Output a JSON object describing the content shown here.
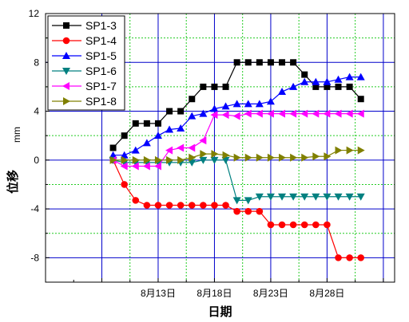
{
  "chart_data": {
    "type": "line",
    "xlabel": "日期",
    "ylabel": "位移",
    "yunit": "mm",
    "xlim": [
      3,
      34
    ],
    "ylim": [
      -10,
      12
    ],
    "ytick_values": [
      -8,
      -4,
      0,
      4,
      8,
      12
    ],
    "ytick_labels": [
      "-8",
      "-4",
      "0",
      "4",
      "8",
      "12"
    ],
    "xtick_values": [
      13,
      18,
      23,
      28
    ],
    "xtick_labels": [
      "8月13日",
      "8月18日",
      "8月23日",
      "8月28日"
    ],
    "x_major_grid": [
      3,
      8,
      13,
      18,
      23,
      28,
      33
    ],
    "x_minor_grid": [
      10.5,
      15.5,
      20.5,
      25.5,
      30.5
    ],
    "y_major_grid": [
      -8,
      -4,
      0,
      4,
      8
    ],
    "y_minor_grid": [
      -10,
      -6,
      -2,
      2,
      6,
      10
    ],
    "grid": true,
    "legend_position": "top-left",
    "x": [
      9,
      10,
      11,
      12,
      13,
      14,
      15,
      16,
      17,
      18,
      19,
      20,
      21,
      22,
      23,
      24,
      25,
      26,
      27,
      28,
      29,
      30,
      31
    ],
    "series": [
      {
        "name": "SP1-3",
        "color": "#000000",
        "marker": "square",
        "values": [
          1,
          2,
          3,
          3,
          3,
          4,
          4,
          5,
          6,
          6,
          6,
          8,
          8,
          8,
          8,
          8,
          8,
          7,
          6,
          6,
          6,
          6,
          5
        ]
      },
      {
        "name": "SP1-4",
        "color": "#ff0000",
        "marker": "circle",
        "values": [
          0,
          -2,
          -3.3,
          -3.7,
          -3.7,
          -3.7,
          -3.7,
          -3.7,
          -3.7,
          -3.7,
          -3.7,
          -4.2,
          -4.2,
          -4.2,
          -5.3,
          -5.3,
          -5.3,
          -5.3,
          -5.3,
          -5.3,
          -8,
          -8,
          -8
        ]
      },
      {
        "name": "SP1-5",
        "color": "#0000ff",
        "marker": "triangle-up",
        "values": [
          0.4,
          0.4,
          0.8,
          1.4,
          2,
          2.5,
          2.6,
          3.6,
          3.8,
          4.2,
          4.4,
          4.6,
          4.6,
          4.6,
          4.8,
          5.6,
          6,
          6.4,
          6.4,
          6.4,
          6.6,
          6.8,
          6.8
        ]
      },
      {
        "name": "SP1-6",
        "color": "#008080",
        "marker": "triangle-down",
        "values": [
          0,
          -0.2,
          -0.2,
          -0.2,
          -0.2,
          -0.2,
          -0.2,
          -0.2,
          0,
          0,
          0,
          -3.3,
          -3.3,
          -3,
          -3,
          -3,
          -3,
          -3,
          -3,
          -3,
          -3,
          -3,
          -3
        ]
      },
      {
        "name": "SP1-7",
        "color": "#ff00ff",
        "marker": "triangle-left",
        "values": [
          0,
          -0.5,
          -0.5,
          -0.5,
          -0.5,
          0.8,
          1,
          1,
          1.6,
          3.7,
          3.7,
          3.6,
          3.8,
          3.8,
          3.8,
          3.8,
          3.8,
          3.8,
          3.8,
          3.8,
          3.8,
          3.8,
          3.8
        ]
      },
      {
        "name": "SP1-8",
        "color": "#808000",
        "marker": "triangle-right",
        "values": [
          0,
          0,
          0,
          0,
          0,
          0,
          0,
          0.2,
          0.5,
          0.5,
          0.4,
          0.2,
          0.2,
          0.2,
          0.2,
          0.2,
          0.2,
          0.2,
          0.3,
          0.3,
          0.8,
          0.8,
          0.8
        ]
      }
    ]
  }
}
